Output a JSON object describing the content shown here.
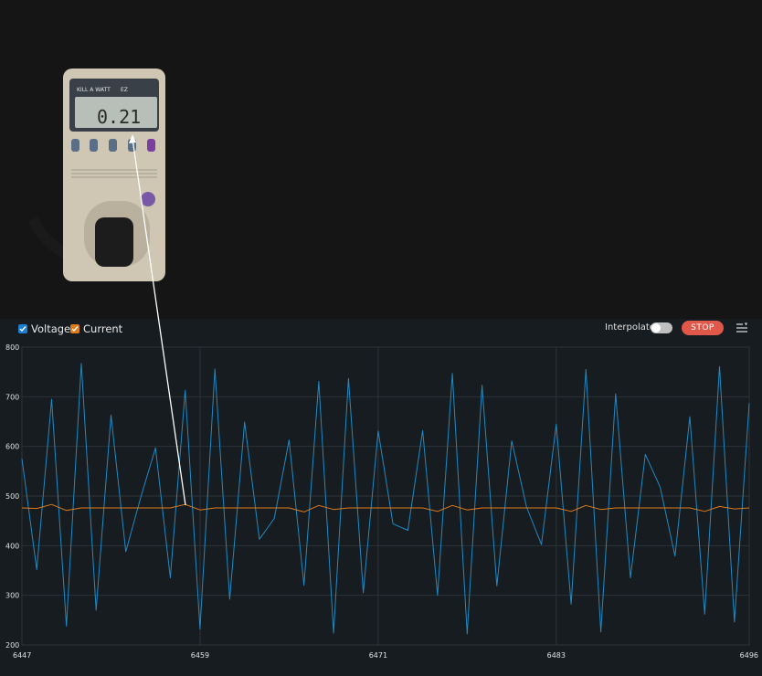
{
  "legend": {
    "voltage_label": "Voltage",
    "current_label": "Current"
  },
  "controls": {
    "interpolate_label": "Interpolate",
    "interpolate_on": false,
    "stop_label": "STOP"
  },
  "meter": {
    "brand": "KILL A WATT",
    "model": "EZ",
    "display": "0.21"
  },
  "colors": {
    "voltage": "#1f8ac4",
    "current": "#e07b1a",
    "stop": "#e0584a",
    "checkbox_voltage": "#1a7fd4",
    "checkbox_current": "#e07b1a"
  },
  "chart_data": {
    "type": "line",
    "xlim": [
      6447,
      6496
    ],
    "ylim": [
      200,
      800
    ],
    "x_ticks": [
      6447,
      6459,
      6471,
      6483,
      6496
    ],
    "y_ticks": [
      200,
      300,
      400,
      500,
      600,
      700,
      800
    ],
    "grid": true,
    "series": [
      {
        "name": "Voltage",
        "x": [
          6447,
          6448,
          6449,
          6450,
          6451,
          6452,
          6453,
          6454,
          6455,
          6456,
          6457,
          6458,
          6459,
          6460,
          6461,
          6462,
          6463,
          6464,
          6465,
          6466,
          6467,
          6468,
          6469,
          6470,
          6471,
          6472,
          6473,
          6474,
          6475,
          6476,
          6477,
          6478,
          6479,
          6480,
          6481,
          6482,
          6483,
          6484,
          6485,
          6486,
          6487,
          6488,
          6489,
          6490,
          6491,
          6492,
          6493,
          6494,
          6495,
          6496
        ],
        "values": [
          575,
          352,
          695,
          238,
          767,
          270,
          663,
          388,
          497,
          597,
          335,
          713,
          232,
          756,
          292,
          649,
          413,
          455,
          613,
          320,
          731,
          224,
          737,
          305,
          631,
          444,
          431,
          632,
          300,
          747,
          222,
          723,
          319,
          611,
          478,
          402,
          645,
          282,
          755,
          226,
          706,
          335,
          584,
          518,
          379,
          660,
          262,
          761,
          246,
          687
        ]
      },
      {
        "name": "Current",
        "x": [
          6447,
          6448,
          6449,
          6450,
          6451,
          6452,
          6453,
          6454,
          6455,
          6456,
          6457,
          6458,
          6459,
          6460,
          6461,
          6462,
          6463,
          6464,
          6465,
          6466,
          6467,
          6468,
          6469,
          6470,
          6471,
          6472,
          6473,
          6474,
          6475,
          6476,
          6477,
          6478,
          6479,
          6480,
          6481,
          6482,
          6483,
          6484,
          6485,
          6486,
          6487,
          6488,
          6489,
          6490,
          6491,
          6492,
          6493,
          6494,
          6495,
          6496
        ],
        "values": [
          476,
          475,
          483,
          471,
          476,
          476,
          476,
          476,
          476,
          476,
          476,
          483,
          472,
          476,
          476,
          476,
          476,
          476,
          476,
          468,
          481,
          473,
          476,
          476,
          476,
          476,
          476,
          476,
          469,
          481,
          472,
          476,
          476,
          476,
          476,
          476,
          476,
          469,
          481,
          473,
          476,
          476,
          476,
          476,
          476,
          476,
          469,
          479,
          474,
          476
        ]
      }
    ]
  }
}
